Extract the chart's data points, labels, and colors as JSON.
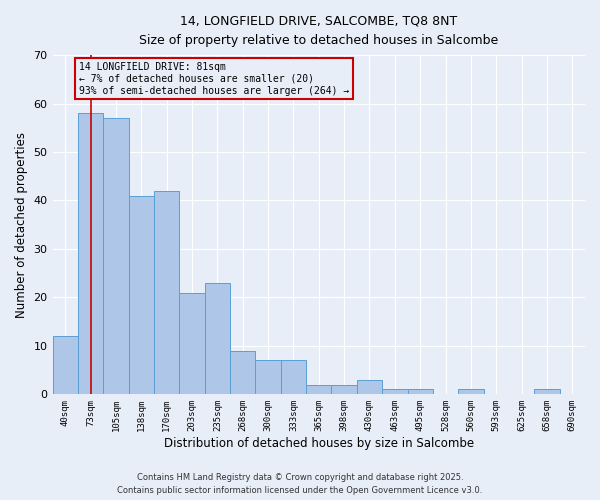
{
  "title_line1": "14, LONGFIELD DRIVE, SALCOMBE, TQ8 8NT",
  "title_line2": "Size of property relative to detached houses in Salcombe",
  "xlabel": "Distribution of detached houses by size in Salcombe",
  "ylabel": "Number of detached properties",
  "categories": [
    "40sqm",
    "73sqm",
    "105sqm",
    "138sqm",
    "170sqm",
    "203sqm",
    "235sqm",
    "268sqm",
    "300sqm",
    "333sqm",
    "365sqm",
    "398sqm",
    "430sqm",
    "463sqm",
    "495sqm",
    "528sqm",
    "560sqm",
    "593sqm",
    "625sqm",
    "658sqm",
    "690sqm"
  ],
  "values": [
    12,
    58,
    57,
    41,
    42,
    21,
    23,
    9,
    7,
    7,
    2,
    2,
    3,
    1,
    1,
    0,
    1,
    0,
    0,
    1,
    0
  ],
  "bar_color": "#aec6e8",
  "bar_edge_color": "#5a9fd4",
  "background_color": "#e8eef8",
  "ylim": [
    0,
    70
  ],
  "yticks": [
    0,
    10,
    20,
    30,
    40,
    50,
    60,
    70
  ],
  "property_line_color": "#cc0000",
  "annotation_text": "14 LONGFIELD DRIVE: 81sqm\n← 7% of detached houses are smaller (20)\n93% of semi-detached houses are larger (264) →",
  "annotation_box_color": "#cc0000",
  "footer_line1": "Contains HM Land Registry data © Crown copyright and database right 2025.",
  "footer_line2": "Contains public sector information licensed under the Open Government Licence v3.0."
}
